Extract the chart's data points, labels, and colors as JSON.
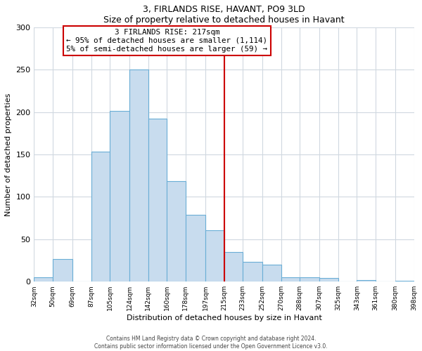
{
  "title": "3, FIRLANDS RISE, HAVANT, PO9 3LD",
  "subtitle": "Size of property relative to detached houses in Havant",
  "xlabel": "Distribution of detached houses by size in Havant",
  "ylabel": "Number of detached properties",
  "bar_edges": [
    32,
    50,
    69,
    87,
    105,
    124,
    142,
    160,
    178,
    197,
    215,
    233,
    252,
    270,
    288,
    307,
    325,
    343,
    361,
    380,
    398
  ],
  "bar_heights": [
    5,
    27,
    0,
    153,
    201,
    250,
    192,
    119,
    79,
    61,
    35,
    23,
    20,
    5,
    5,
    4,
    0,
    2,
    0,
    1
  ],
  "bar_color": "#c8dcee",
  "bar_edge_color": "#6aaed6",
  "vline_x": 215,
  "vline_color": "#cc0000",
  "ylim": [
    0,
    300
  ],
  "annotation_line1": "3 FIRLANDS RISE: 217sqm",
  "annotation_line2": "← 95% of detached houses are smaller (1,114)",
  "annotation_line3": "5% of semi-detached houses are larger (59) →",
  "annotation_box_color": "white",
  "annotation_box_edge": "#cc0000",
  "footer_line1": "Contains HM Land Registry data © Crown copyright and database right 2024.",
  "footer_line2": "Contains public sector information licensed under the Open Government Licence v3.0.",
  "tick_labels": [
    "32sqm",
    "50sqm",
    "69sqm",
    "87sqm",
    "105sqm",
    "124sqm",
    "142sqm",
    "160sqm",
    "178sqm",
    "197sqm",
    "215sqm",
    "233sqm",
    "252sqm",
    "270sqm",
    "288sqm",
    "307sqm",
    "325sqm",
    "343sqm",
    "361sqm",
    "380sqm",
    "398sqm"
  ],
  "yticks": [
    0,
    50,
    100,
    150,
    200,
    250,
    300
  ],
  "background_color": "#f0f4f8"
}
